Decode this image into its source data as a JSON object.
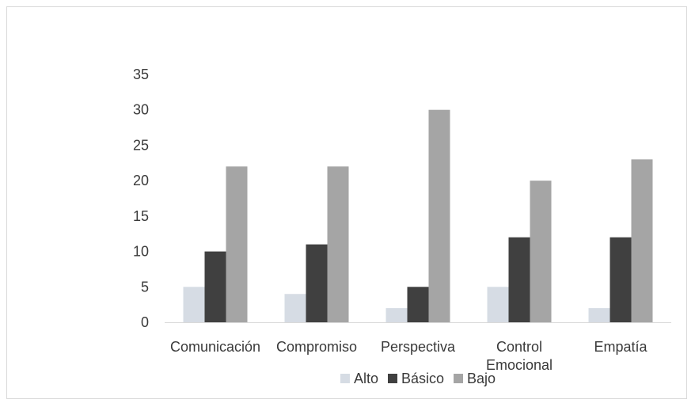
{
  "chart_data": {
    "type": "bar",
    "title": "",
    "xlabel": "",
    "ylabel": "",
    "ylim": [
      0,
      35
    ],
    "yticks": [
      "0",
      "5",
      "10",
      "15",
      "20",
      "25",
      "30",
      "35"
    ],
    "grid": false,
    "legend_position": "bottom",
    "categories": [
      [
        "Comunicación"
      ],
      [
        "Compromiso"
      ],
      [
        "Perspectiva"
      ],
      [
        "Control",
        "Emocional"
      ],
      [
        "Empatía"
      ]
    ],
    "series": [
      {
        "name": "Alto",
        "color": "#d6dce4",
        "values": [
          5,
          4,
          2,
          5,
          2
        ]
      },
      {
        "name": "Básico",
        "color": "#404040",
        "values": [
          10,
          11,
          5,
          12,
          12
        ]
      },
      {
        "name": "Bajo",
        "color": "#a5a5a5",
        "values": [
          22,
          22,
          30,
          20,
          23
        ]
      }
    ]
  }
}
